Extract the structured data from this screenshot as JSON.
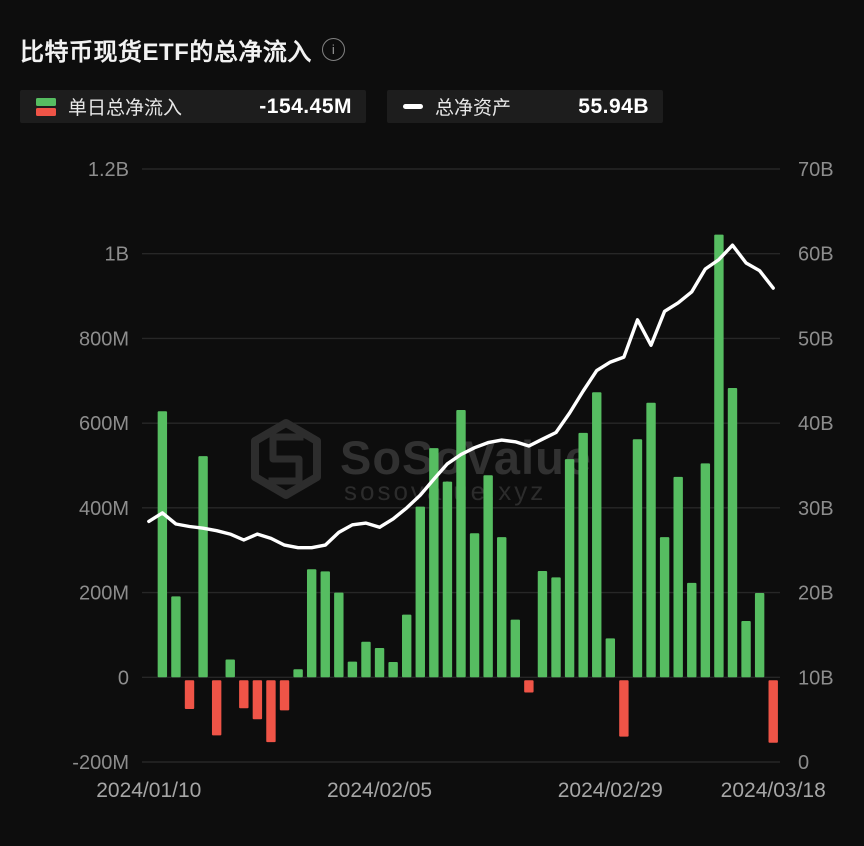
{
  "header": {
    "title": "比特币现货ETF的总净流入",
    "info_glyph": "i"
  },
  "legend": {
    "daily_flow": {
      "label": "单日总净流入",
      "value": "-154.45M"
    },
    "total_assets": {
      "label": "总净资产",
      "value": "55.94B"
    }
  },
  "watermark": {
    "brand": "SoSoValue",
    "domain": "sosovalue.xyz"
  },
  "colors": {
    "background": "#0d0d0d",
    "chip_bg": "#1d1d1d",
    "bar_positive": "#56bd61",
    "bar_negative": "#ef5447",
    "nav_line": "#ffffff",
    "grid": "#272727",
    "axis_text": "#8d8d8d",
    "date_text": "#a6a6a6",
    "watermark_text": "#313131"
  },
  "chart_data": {
    "type": "bar",
    "n_slots": 47,
    "x_tick_labels": [
      {
        "label": "2024/01/10",
        "slot": 0
      },
      {
        "label": "2024/02/05",
        "slot": 17
      },
      {
        "label": "2024/02/29",
        "slot": 34
      },
      {
        "label": "2024/03/18",
        "slot": 46
      }
    ],
    "left_axis": {
      "unit": "M",
      "min": -200,
      "max": 1200,
      "ticks": [
        "1.2B",
        "1B",
        "800M",
        "600M",
        "400M",
        "200M",
        "0",
        "-200M"
      ]
    },
    "right_axis": {
      "unit": "B",
      "min": 0,
      "max": 70,
      "ticks": [
        "70B",
        "60B",
        "50B",
        "40B",
        "30B",
        "20B",
        "10B",
        "0"
      ]
    },
    "series": [
      {
        "name": "单日总净流入",
        "kind": "bar",
        "axis": "left",
        "unit": "M",
        "values": [
          0,
          628,
          191,
          -75,
          522,
          -137,
          42,
          -73,
          -99,
          -153,
          -78,
          19,
          255,
          250,
          200,
          37,
          84,
          69,
          36,
          148,
          403,
          541,
          462,
          631,
          340,
          477,
          331,
          136,
          -36,
          251,
          236,
          515,
          577,
          673,
          92,
          -140,
          562,
          648,
          331,
          473,
          223,
          505,
          1045,
          683,
          133,
          199,
          -154.45
        ]
      },
      {
        "name": "总净资产",
        "kind": "line",
        "axis": "right",
        "unit": "B",
        "values": [
          28.4,
          29.4,
          28.1,
          27.8,
          27.6,
          27.3,
          26.9,
          26.2,
          26.9,
          26.4,
          25.6,
          25.3,
          25.3,
          25.6,
          27.1,
          28.0,
          28.2,
          27.7,
          28.7,
          30.0,
          31.5,
          33.4,
          35.2,
          36.3,
          37.1,
          37.7,
          38.0,
          37.8,
          37.3,
          38.1,
          38.9,
          41.2,
          43.8,
          46.2,
          47.2,
          47.8,
          52.2,
          49.2,
          53.2,
          54.2,
          55.5,
          58.2,
          59.3,
          61.0,
          58.9,
          58.0,
          55.94
        ]
      }
    ]
  }
}
